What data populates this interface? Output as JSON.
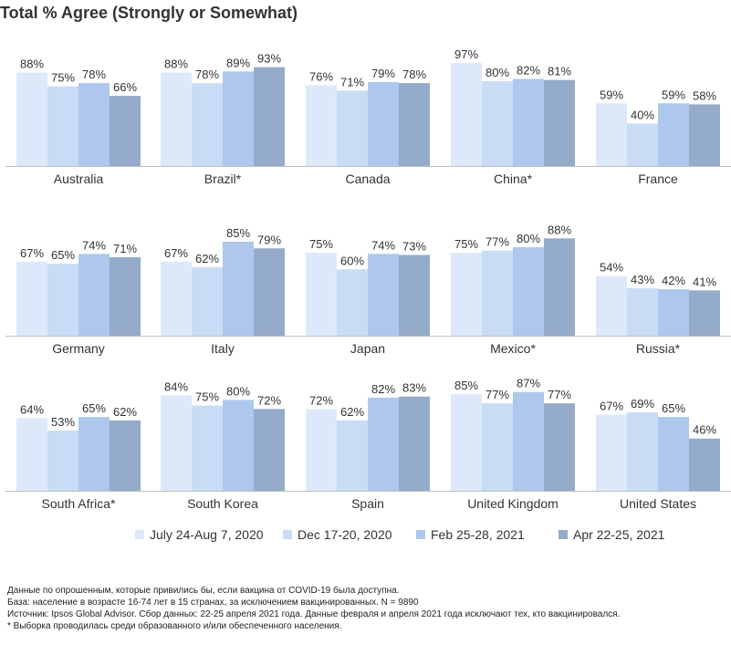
{
  "chart_data": {
    "type": "bar",
    "title": "Total % Agree (Strongly or Somewhat)",
    "ylim": [
      0,
      100
    ],
    "value_suffix": "%",
    "series": [
      {
        "name": "July 24-Aug 7, 2020",
        "color": "#dde9fb"
      },
      {
        "name": "Dec 17-20, 2020",
        "color": "#c9dcf6"
      },
      {
        "name": "Feb 25-28, 2021",
        "color": "#adc8ec"
      },
      {
        "name": "Apr 22-25, 2021",
        "color": "#94abc9"
      }
    ],
    "categories": [
      {
        "label": "Australia",
        "values": [
          88,
          75,
          78,
          66
        ]
      },
      {
        "label": "Brazil*",
        "values": [
          88,
          78,
          89,
          93
        ]
      },
      {
        "label": "Canada",
        "values": [
          76,
          71,
          79,
          78
        ]
      },
      {
        "label": "China*",
        "values": [
          97,
          80,
          82,
          81
        ]
      },
      {
        "label": "France",
        "values": [
          59,
          40,
          59,
          58
        ]
      },
      {
        "label": "Germany",
        "values": [
          67,
          65,
          74,
          71
        ]
      },
      {
        "label": "Italy",
        "values": [
          67,
          62,
          85,
          79
        ]
      },
      {
        "label": "Japan",
        "values": [
          75,
          60,
          74,
          73
        ]
      },
      {
        "label": "Mexico*",
        "values": [
          75,
          77,
          80,
          88
        ]
      },
      {
        "label": "Russia*",
        "values": [
          54,
          43,
          42,
          41
        ]
      },
      {
        "label": "South Africa*",
        "values": [
          64,
          53,
          65,
          62
        ]
      },
      {
        "label": "South Korea",
        "values": [
          84,
          75,
          80,
          72
        ]
      },
      {
        "label": "Spain",
        "values": [
          72,
          62,
          82,
          83
        ]
      },
      {
        "label": "United Kingdom",
        "values": [
          85,
          77,
          87,
          77
        ]
      },
      {
        "label": "United States",
        "values": [
          67,
          69,
          65,
          46
        ]
      }
    ]
  },
  "footnotes": [
    "Данные по опрошенным, которые привились бы, если вакцина от COVID-19 была доступна.",
    "База: население в возрасте 16-74 лет в 15 странах, за исключением вакцинированных.  N = 9890",
    "Источник: Ipsos Global Advisor. Сбор данных: 22-25 апреля 2021 года. Данные февраля и апреля 2021 года исключают тех, кто вакцинировался.",
    "* Выборка проводилась среди образованного и/или обеспеченного населения."
  ]
}
